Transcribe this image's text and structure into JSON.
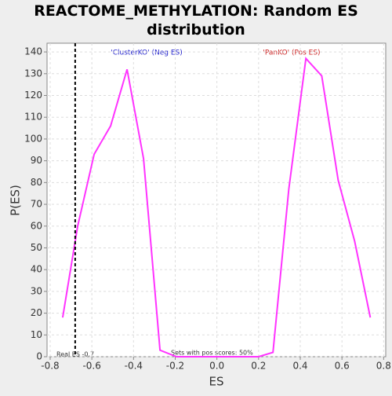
{
  "chart_data": {
    "type": "line",
    "title": "REACTOME_METHYLATION: Random ES distribution",
    "x_label": "ES",
    "y_label": "P(ES)",
    "x": [
      -0.74,
      -0.668,
      -0.589,
      -0.51,
      -0.431,
      -0.352,
      -0.273,
      -0.194,
      -0.115,
      -0.036,
      0.043,
      0.122,
      0.2,
      0.269,
      0.345,
      0.427,
      0.503,
      0.582,
      0.661,
      0.736
    ],
    "series": [
      {
        "name": "P(ES)",
        "color": "#ff33ff",
        "values": [
          18,
          60,
          93,
          106,
          132,
          91,
          3,
          0,
          0,
          0,
          0,
          0,
          0,
          2,
          77,
          137,
          129,
          81,
          53,
          18
        ]
      }
    ],
    "xlim": [
      -0.815,
      0.81
    ],
    "ylim": [
      0,
      144
    ],
    "xticks": [
      -0.8,
      -0.6,
      -0.4,
      -0.2,
      {
        "value": 0,
        "label": "0.0"
      },
      0.2,
      0.4,
      0.6,
      0.8
    ],
    "yticks": [
      0,
      10,
      20,
      30,
      40,
      50,
      60,
      70,
      80,
      90,
      100,
      110,
      120,
      130,
      140
    ],
    "grid": true,
    "real_es": -0.68,
    "real_es_label": "Real ES -0.7",
    "pos_score_label": "Sets with pos scores: 50%",
    "neg_label": "'ClusterKO' (Neg ES)",
    "neg_color": "#2222cc",
    "pos_label": "'PanKO' (Pos ES)",
    "pos_color": "#cc2222"
  }
}
